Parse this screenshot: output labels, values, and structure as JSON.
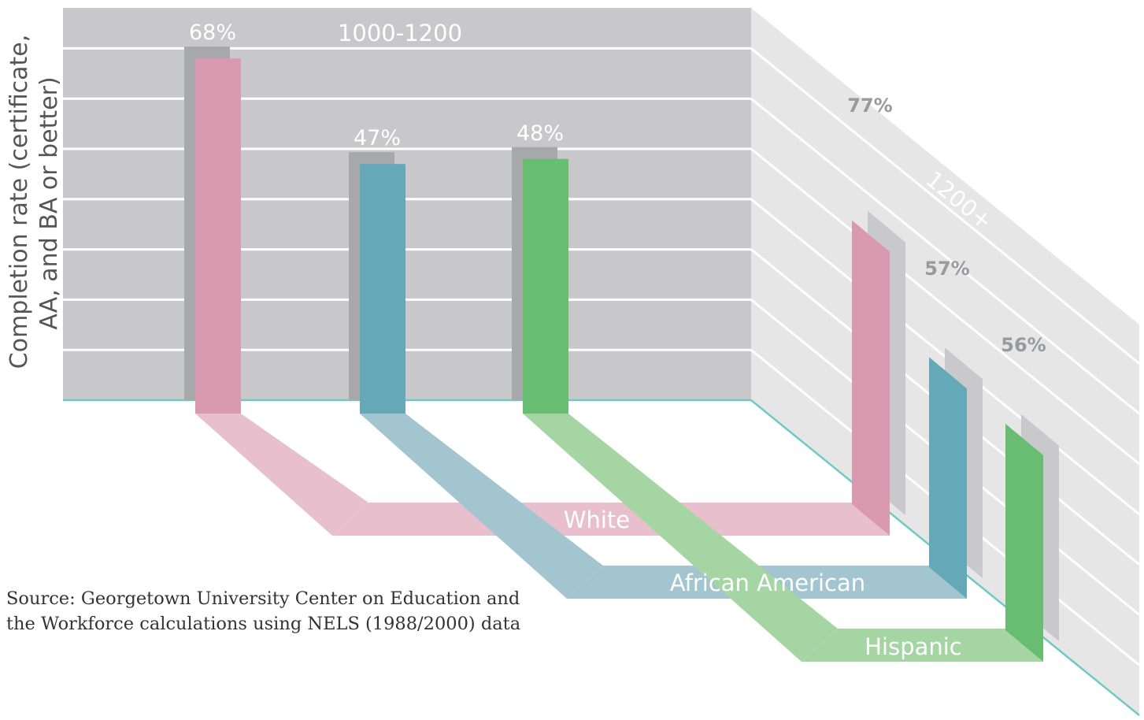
{
  "chart_data": {
    "type": "bar",
    "ylabel_lines": [
      "Completion rate (certificate,",
      "AA, and BA or better)"
    ],
    "groups": [
      "1000-1200",
      "1200+"
    ],
    "categories": [
      "White",
      "African American",
      "Hispanic"
    ],
    "series": [
      {
        "name": "1000-1200",
        "values": [
          68,
          47,
          48
        ]
      },
      {
        "name": "1200+",
        "values": [
          77,
          57,
          56
        ]
      }
    ],
    "value_labels": {
      "1000-1200": [
        "68%",
        "47%",
        "48%"
      ],
      "1200+": [
        "77%",
        "57%",
        "56%"
      ]
    },
    "ylim": [
      0,
      100
    ],
    "grid": true
  },
  "colors": {
    "White": "#d99ab0",
    "African American": "#65a9b8",
    "Hispanic": "#68bd73",
    "ribbon_White": "#e8c0cd",
    "ribbon_African American": "#a2c5d0",
    "ribbon_Hispanic": "#a6d5a4",
    "back_panel": "#c8c8ca",
    "side_panel": "#e6e6e7",
    "bar_shadow": "#a7a8aa",
    "side_shadow": "#c9c9cb",
    "baseline": "#6fc9c6",
    "grid": "#ffffff"
  },
  "source_lines": [
    "Source: Georgetown University Center on Education and",
    "the Workforce calculations using NELS (1988/2000) data"
  ]
}
